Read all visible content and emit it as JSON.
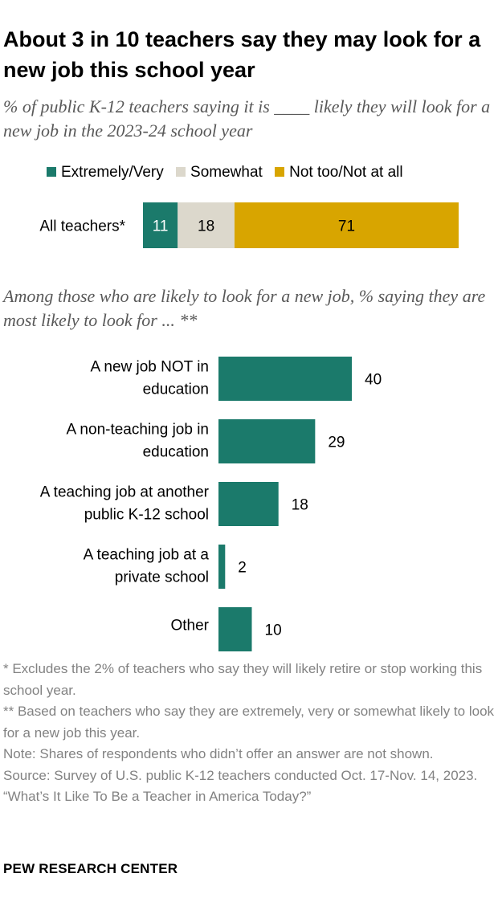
{
  "title": "About 3 in 10 teachers say they may look for a new job this school year",
  "subtitle": "% of public K-12 teachers saying it is ____ likely they will look for a new job in the 2023-24 school year",
  "chart_data": [
    {
      "type": "bar",
      "orientation": "horizontal",
      "stacked": true,
      "categories": [
        "All teachers*"
      ],
      "series": [
        {
          "name": "Extremely/Very",
          "color": "#1b7a6b",
          "label_color": "#ffffff",
          "values": [
            11
          ]
        },
        {
          "name": "Somewhat",
          "color": "#dcd8cc",
          "label_color": "#000000",
          "values": [
            18
          ]
        },
        {
          "name": "Not too/Not at all",
          "color": "#d8a500",
          "label_color": "#000000",
          "values": [
            71
          ]
        }
      ],
      "xlim": [
        0,
        100
      ],
      "legend": "top",
      "grid": false
    },
    {
      "type": "bar",
      "orientation": "horizontal",
      "title": "Among those who are likely to look for a new job, % saying they are most likely to look for ... **",
      "categories": [
        [
          "A new job NOT in",
          "education"
        ],
        [
          "A non-teaching job in",
          "education"
        ],
        [
          "A teaching job at another",
          "public K-12 school"
        ],
        [
          "A teaching job at a",
          "private school"
        ],
        [
          "Other"
        ]
      ],
      "values": [
        40,
        29,
        18,
        2,
        10
      ],
      "color": "#1b7a6b",
      "xlim": [
        0,
        100
      ],
      "grid": false
    }
  ],
  "notes": [
    "* Excludes the 2% of teachers who say they will likely retire or stop working this school year.",
    "** Based on teachers who say they are extremely, very or somewhat likely to look for a new job this year.",
    "Note: Shares of respondents who didn’t offer an answer are not shown.",
    "Source: Survey of U.S. public K-12 teachers conducted Oct. 17-Nov. 14, 2023.",
    "“What’s It Like To Be a Teacher in America Today?”"
  ],
  "brand": "PEW RESEARCH CENTER"
}
